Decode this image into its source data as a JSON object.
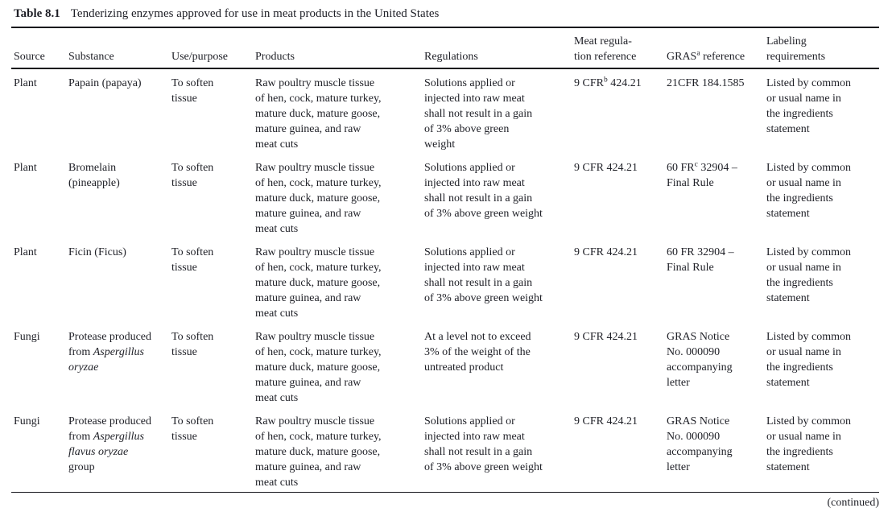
{
  "caption": {
    "label": "Table 8.1",
    "text": "Tenderizing enzymes approved for use in meat products in the United States"
  },
  "columns": {
    "source": "Source",
    "substance": "Substance",
    "use": "Use/purpose",
    "products": "Products",
    "regulations": "Regulations",
    "meat_regulation": "Meat regula-\ntion reference",
    "gras": {
      "pre": "GRAS",
      "sup": "a",
      "post": " reference"
    },
    "labeling": "Labeling\nrequirements"
  },
  "rows": [
    {
      "source": "Plant",
      "substance": {
        "pre": "Papain (papaya)",
        "italic": "",
        "post": ""
      },
      "use": "To soften\ntissue",
      "products": "Raw poultry muscle tissue\nof hen, cock, mature turkey,\nmature duck, mature goose,\nmature guinea, and raw\nmeat cuts",
      "regulations": "Solutions applied or\ninjected into raw meat\nshall not result in a gain\nof 3% above green\nweight",
      "meat": {
        "pre": "9 CFR",
        "sup": "b",
        "post": " 424.21"
      },
      "gras": {
        "pre": "21CFR 184.1585",
        "sup": "",
        "post": ""
      },
      "labeling": "Listed by common\nor usual name in\nthe ingredients\nstatement"
    },
    {
      "source": "Plant",
      "substance": {
        "pre": "Bromelain\n(pineapple)",
        "italic": "",
        "post": ""
      },
      "use": "To soften\ntissue",
      "products": "Raw poultry muscle tissue\nof hen, cock, mature turkey,\nmature duck, mature goose,\nmature guinea, and raw\nmeat cuts",
      "regulations": "Solutions applied or\ninjected into raw meat\nshall not result in a gain\nof 3% above green weight",
      "meat": {
        "pre": "9 CFR 424.21",
        "sup": "",
        "post": ""
      },
      "gras": {
        "pre": "60 FR",
        "sup": "c",
        "post": " 32904 –\nFinal Rule"
      },
      "labeling": "Listed by common\nor usual name in\nthe ingredients\nstatement"
    },
    {
      "source": "Plant",
      "substance": {
        "pre": "Ficin (Ficus)",
        "italic": "",
        "post": ""
      },
      "use": "To soften\ntissue",
      "products": "Raw poultry muscle tissue\nof hen, cock, mature turkey,\nmature duck, mature goose,\nmature guinea, and raw\nmeat cuts",
      "regulations": "Solutions applied or\ninjected into raw meat\nshall not result in a gain\nof 3% above green weight",
      "meat": {
        "pre": "9 CFR 424.21",
        "sup": "",
        "post": ""
      },
      "gras": {
        "pre": "60 FR 32904 –\nFinal Rule",
        "sup": "",
        "post": ""
      },
      "labeling": "Listed by common\nor usual name in\nthe ingredients\nstatement"
    },
    {
      "source": "Fungi",
      "substance": {
        "pre": "Protease produced\nfrom ",
        "italic": "Aspergillus\noryzae",
        "post": ""
      },
      "use": "To soften\ntissue",
      "products": "Raw poultry muscle tissue\nof hen, cock, mature turkey,\nmature duck, mature goose,\nmature guinea, and raw\nmeat cuts",
      "regulations": "At a level not to exceed\n3% of the weight of the\nuntreated product",
      "meat": {
        "pre": "9 CFR 424.21",
        "sup": "",
        "post": ""
      },
      "gras": {
        "pre": "GRAS Notice\nNo. 000090\naccompanying\nletter",
        "sup": "",
        "post": ""
      },
      "labeling": "Listed by common\nor usual name in\nthe ingredients\nstatement"
    },
    {
      "source": "Fungi",
      "substance": {
        "pre": "Protease produced\nfrom ",
        "italic": "Aspergillus\nflavus oryzae",
        "post": "\ngroup"
      },
      "use": "To soften\ntissue",
      "products": "Raw poultry muscle tissue\nof hen, cock, mature turkey,\nmature duck, mature goose,\nmature guinea, and raw\nmeat cuts",
      "regulations": "Solutions applied or\ninjected into raw meat\nshall not result in a gain\nof 3% above green weight",
      "meat": {
        "pre": "9 CFR 424.21",
        "sup": "",
        "post": ""
      },
      "gras": {
        "pre": "GRAS Notice\nNo. 000090\naccompanying\nletter",
        "sup": "",
        "post": ""
      },
      "labeling": "Listed by common\nor usual name in\nthe ingredients\nstatement"
    }
  ],
  "footer": {
    "continued": "(continued)"
  }
}
